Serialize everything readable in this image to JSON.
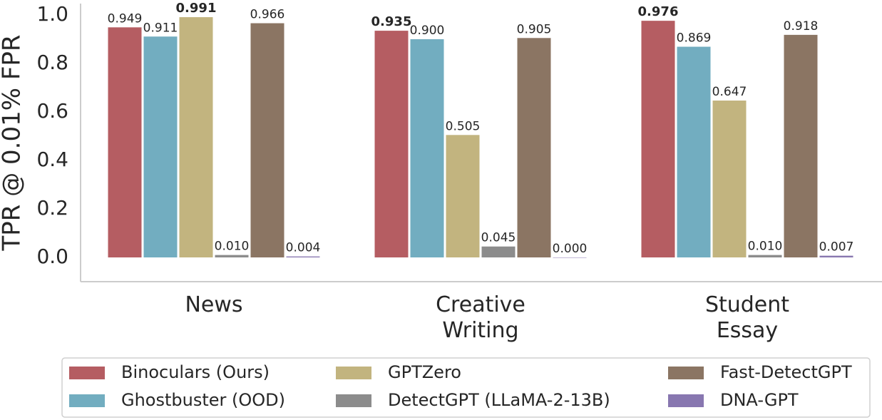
{
  "chart_data": {
    "type": "bar",
    "y_label": "TPR @ 0.01% FPR",
    "categories": [
      "News",
      "Creative\nWriting",
      "Student\nEssay"
    ],
    "series": [
      {
        "name": "Binoculars (Ours)",
        "color": "#b55d62",
        "values": [
          0.949,
          0.935,
          0.976
        ],
        "value_labels": [
          "0.949",
          "0.935",
          "0.976"
        ]
      },
      {
        "name": "Ghostbuster (OOD)",
        "color": "#72adc0",
        "values": [
          0.911,
          0.9,
          0.869
        ],
        "value_labels": [
          "0.911",
          "0.900",
          "0.869"
        ]
      },
      {
        "name": "GPTZero",
        "color": "#c2b47f",
        "values": [
          0.991,
          0.505,
          0.647
        ],
        "value_labels": [
          "0.991",
          "0.505",
          "0.647"
        ]
      },
      {
        "name": "DetectGPT (LLaMA-2-13B)",
        "color": "#8c8c8c",
        "values": [
          0.01,
          0.045,
          0.01
        ],
        "value_labels": [
          "0.010",
          "0.045",
          "0.010"
        ]
      },
      {
        "name": "Fast-DetectGPT",
        "color": "#8b7563",
        "values": [
          0.966,
          0.905,
          0.918
        ],
        "value_labels": [
          "0.966",
          "0.905",
          "0.918"
        ]
      },
      {
        "name": "DNA-GPT",
        "color": "#8877b0",
        "values": [
          0.004,
          0.0,
          0.007
        ],
        "value_labels": [
          "0.004",
          "0.000",
          "0.007"
        ]
      }
    ],
    "ylim": [
      -0.1,
      1.05
    ],
    "yticks": [
      {
        "value": 0,
        "label": "0.0"
      },
      0.2,
      0.4,
      0.6,
      0.8,
      {
        "value": 1,
        "label": "1.0"
      }
    ],
    "legend": "bottom",
    "grid": false
  }
}
